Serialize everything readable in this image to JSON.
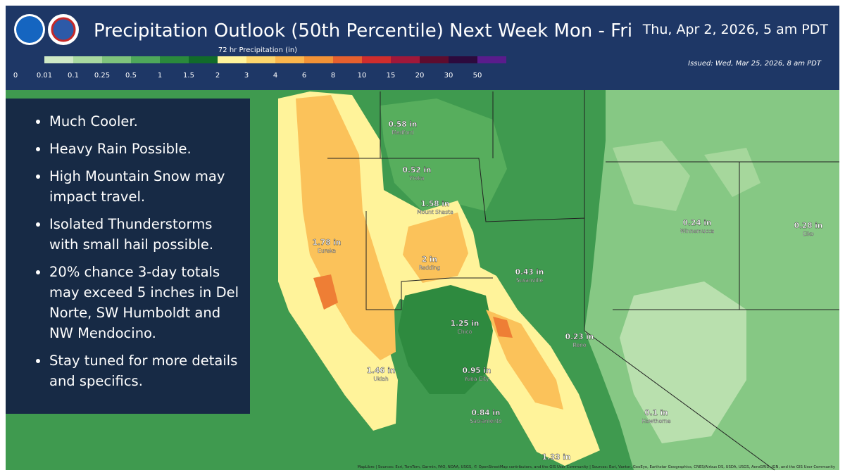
{
  "header": {
    "title": "Precipitation Outlook (50th Percentile) Next Week Mon - Fri",
    "valid": "Thu, Apr 2, 2026, 5 am PDT",
    "issued": "Issued: Wed, Mar 25, 2026, 8 am PDT"
  },
  "legend": {
    "title": "72 hr Precipitation (in)",
    "ticks": [
      0,
      0.01,
      0.1,
      0.25,
      0.5,
      1,
      1.5,
      2,
      3,
      4,
      6,
      8,
      10,
      15,
      20,
      30,
      50
    ],
    "colors": [
      "#cfe9c6",
      "#a9d9a0",
      "#7fc47c",
      "#4ea85a",
      "#2a8a3c",
      "#116b2a",
      "#fff39a",
      "#fdd66c",
      "#fbb64c",
      "#f29236",
      "#e6602e",
      "#cf2d2d",
      "#a0183a",
      "#5e0c2e",
      "#2c0a3d",
      "#5a1c8c",
      "#5c5ce0",
      "#a9a9f2"
    ]
  },
  "bullets": [
    "Much Cooler.",
    "Heavy Rain Possible.",
    "High Mountain Snow may impact travel.",
    "Isolated Thunderstorms with small hail possible.",
    "20% chance 3-day totals may exceed 5 inches in Del Norte, SW Humboldt and NW Mendocino.",
    "Stay tuned for more details and specifics."
  ],
  "places": [
    {
      "amount": "0.58 in",
      "name": "Medford"
    },
    {
      "amount": "0.52 in",
      "name": "Yreka"
    },
    {
      "amount": "1.58 in",
      "name": "Mount Shasta"
    },
    {
      "amount": "1.78 in",
      "name": "Eureka"
    },
    {
      "amount": "2 in",
      "name": "Redding"
    },
    {
      "amount": "0.43 in",
      "name": "Susanville"
    },
    {
      "amount": "1.25 in",
      "name": "Chico"
    },
    {
      "amount": "0.23 in",
      "name": "Reno"
    },
    {
      "amount": "1.46 in",
      "name": "Ukiah"
    },
    {
      "amount": "0.95 in",
      "name": "Yuba City"
    },
    {
      "amount": "0.84 in",
      "name": "Sacramento"
    },
    {
      "amount": "0.1 in",
      "name": "Hawthorne"
    },
    {
      "amount": "0.24 in",
      "name": "Winnemucca"
    },
    {
      "amount": "0.28 in",
      "name": "Elko"
    },
    {
      "amount": "1.33 in"
    }
  ],
  "attribution": "MapLibre | Sources: Esri, TomTom, Garmin, FAO, NOAA, USGS, © OpenStreetMap contributors, and the GIS User Community | Sources: Esri, Vantor, GeoEye, Earthstar Geographics, CNES/Airbus DS, USDA, USGS, AeroGRID, IGN, and the GIS User Community"
}
